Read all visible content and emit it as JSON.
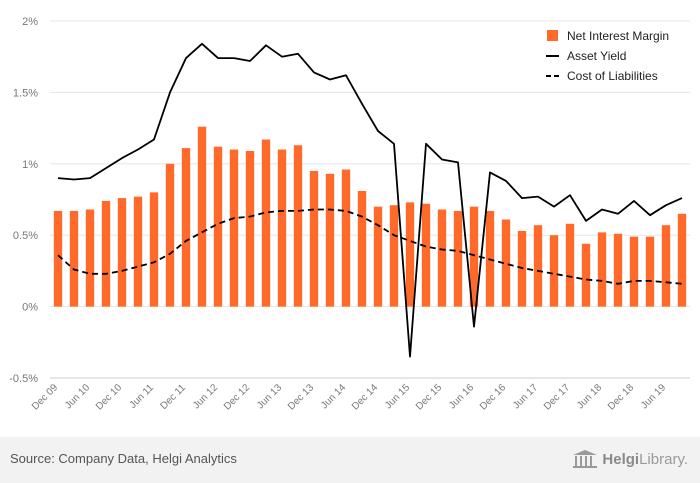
{
  "footer": {
    "source": "Source: Company Data, Helgi Analytics",
    "brand_bold": "Helgi",
    "brand_rest": "Library.",
    "logo_icon": "library-columns-icon"
  },
  "chart_data": {
    "type": "bar",
    "categories": [
      "Dec 09",
      "Mar 10",
      "Jun 10",
      "Sep 10",
      "Dec 10",
      "Mar 11",
      "Jun 11",
      "Sep 11",
      "Dec 11",
      "Mar 12",
      "Jun 12",
      "Sep 12",
      "Dec 12",
      "Mar 13",
      "Jun 13",
      "Sep 13",
      "Dec 13",
      "Mar 14",
      "Jun 14",
      "Sep 14",
      "Dec 14",
      "Mar 15",
      "Jun 15",
      "Sep 15",
      "Dec 15",
      "Mar 16",
      "Jun 16",
      "Sep 16",
      "Dec 16",
      "Mar 17",
      "Jun 17",
      "Sep 17",
      "Dec 17",
      "Mar 18",
      "Jun 18",
      "Sep 18",
      "Dec 18",
      "Mar 19",
      "Jun 19",
      "Sep 19"
    ],
    "tick_labels": [
      "Dec 09",
      "Jun 10",
      "Dec 10",
      "Jun 11",
      "Dec 11",
      "Jun 12",
      "Dec 12",
      "Jun 13",
      "Dec 13",
      "Jun 14",
      "Dec 14",
      "Jun 15",
      "Dec 15",
      "Jun 16",
      "Dec 16",
      "Jun 17",
      "Dec 17",
      "Jun 18",
      "Dec 18",
      "Jun 19"
    ],
    "series": [
      {
        "name": "Net Interest Margin",
        "kind": "bar",
        "color": "#ff6a2b",
        "values": [
          0.67,
          0.67,
          0.68,
          0.74,
          0.76,
          0.77,
          0.8,
          1.0,
          1.11,
          1.26,
          1.12,
          1.1,
          1.09,
          1.17,
          1.1,
          1.13,
          0.95,
          0.93,
          0.96,
          0.81,
          0.7,
          0.71,
          0.73,
          0.72,
          0.68,
          0.67,
          0.7,
          0.67,
          0.61,
          0.53,
          0.57,
          0.5,
          0.58,
          0.44,
          0.52,
          0.51,
          0.49,
          0.49,
          0.57,
          0.65
        ]
      },
      {
        "name": "Asset Yield",
        "kind": "line",
        "color": "#000000",
        "values": [
          0.9,
          0.89,
          0.9,
          0.97,
          1.04,
          1.1,
          1.17,
          1.5,
          1.74,
          1.84,
          1.74,
          1.74,
          1.72,
          1.83,
          1.75,
          1.77,
          1.64,
          1.59,
          1.62,
          1.42,
          1.23,
          1.14,
          -0.35,
          1.14,
          1.03,
          1.01,
          -0.14,
          0.94,
          0.88,
          0.76,
          0.77,
          0.7,
          0.78,
          0.6,
          0.68,
          0.65,
          0.74,
          0.64,
          0.71,
          0.76
        ]
      },
      {
        "name": "Cost of Liabilities",
        "kind": "dashed-line",
        "color": "#000000",
        "values": [
          0.36,
          0.26,
          0.23,
          0.23,
          0.25,
          0.28,
          0.31,
          0.37,
          0.46,
          0.52,
          0.58,
          0.62,
          0.63,
          0.66,
          0.67,
          0.67,
          0.68,
          0.68,
          0.67,
          0.63,
          0.57,
          0.5,
          0.46,
          0.42,
          0.4,
          0.39,
          0.36,
          0.33,
          0.3,
          0.27,
          0.25,
          0.23,
          0.21,
          0.19,
          0.18,
          0.16,
          0.18,
          0.18,
          0.17,
          0.16
        ]
      }
    ],
    "ylim": [
      -0.5,
      2.0
    ],
    "yticks": [
      {
        "value": 2.0,
        "label": "2%"
      },
      {
        "value": 1.5,
        "label": "1.5%"
      },
      {
        "value": 1.0,
        "label": "1%"
      },
      {
        "value": 0.5,
        "label": "0.5%"
      },
      {
        "value": 0.0,
        "label": "0%"
      },
      {
        "value": -0.5,
        "label": "-0.5%"
      }
    ],
    "title": "",
    "xlabel": "",
    "ylabel": "",
    "grid": true,
    "legend_position": "top-right"
  }
}
